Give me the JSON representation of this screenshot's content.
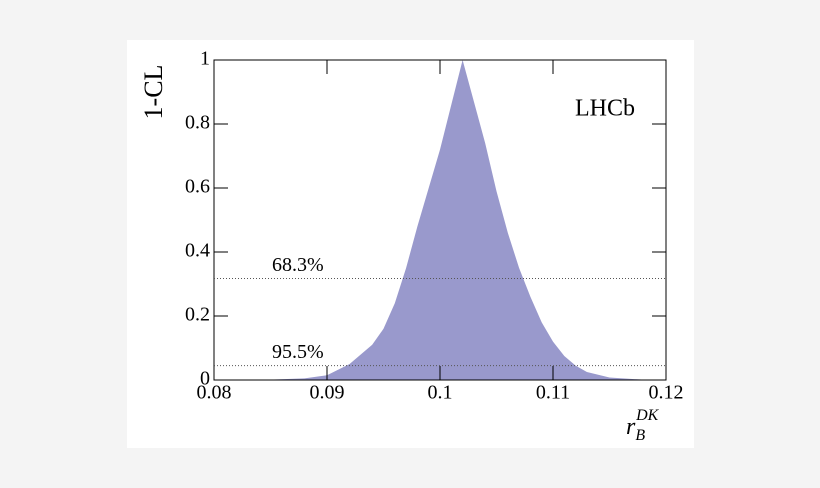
{
  "chart_data": {
    "type": "area",
    "ylabel": "1-CL",
    "xlabel": {
      "base": "r",
      "sub": "B",
      "sup": "DK"
    },
    "annotation": "LHCb",
    "color": "#9999cc",
    "x": [
      0.08,
      0.085,
      0.088,
      0.09,
      0.092,
      0.094,
      0.095,
      0.096,
      0.097,
      0.098,
      0.099,
      0.1,
      0.101,
      0.102,
      0.103,
      0.104,
      0.105,
      0.106,
      0.107,
      0.108,
      0.109,
      0.11,
      0.111,
      0.112,
      0.113,
      0.115,
      0.118,
      0.12
    ],
    "y": [
      0,
      0.001,
      0.005,
      0.015,
      0.05,
      0.11,
      0.16,
      0.24,
      0.35,
      0.48,
      0.6,
      0.72,
      0.86,
      1.0,
      0.87,
      0.74,
      0.59,
      0.46,
      0.35,
      0.26,
      0.18,
      0.12,
      0.075,
      0.045,
      0.025,
      0.008,
      0.001,
      0
    ],
    "xlim": [
      0.08,
      0.12
    ],
    "xticks": [
      0.08,
      0.09,
      0.1,
      0.11,
      0.12
    ],
    "ylim": [
      0,
      1
    ],
    "yticks": [
      0,
      0.2,
      0.4,
      0.6,
      0.8,
      1
    ],
    "hlines": [
      {
        "value": 0.317,
        "label": "68.3%"
      },
      {
        "value": 0.045,
        "label": "95.5%"
      }
    ]
  }
}
